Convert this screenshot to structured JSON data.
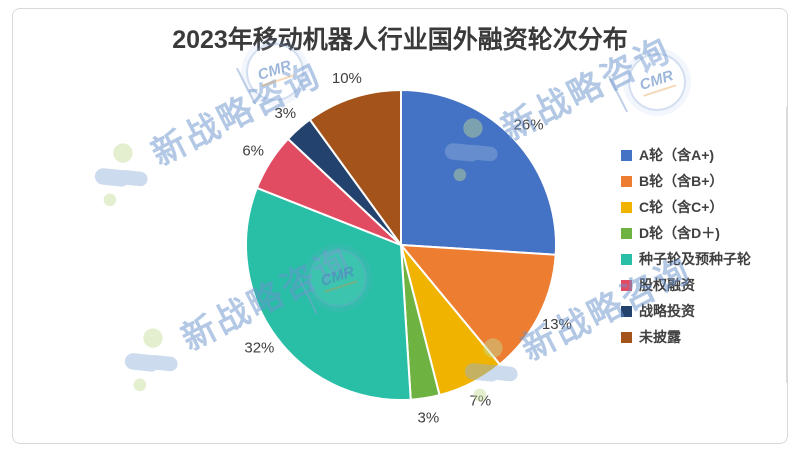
{
  "window": {
    "background": "#ffffff",
    "panel_border": "#d9d9d9"
  },
  "chart_data": {
    "type": "pie",
    "title": "2023年移动机器人行业国外融资轮次分布",
    "categories": [
      "A轮（含A+)",
      "B轮（含B+）",
      "C轮（含C+）",
      "D轮（含D＋)",
      "种子轮及预种子轮",
      "股权融资",
      "战略投资",
      "未披露"
    ],
    "values": [
      26,
      13,
      7,
      3,
      32,
      6,
      3,
      10
    ],
    "labels": [
      "26%",
      "13%",
      "7%",
      "3%",
      "32%",
      "6%",
      "3%",
      "10%"
    ],
    "colors": [
      "#4472C4",
      "#ED7D31",
      "#F0B400",
      "#6EB342",
      "#29BEA6",
      "#E24C62",
      "#24426E",
      "#A4541B"
    ],
    "legend_position": "right",
    "start_angle_deg": 0,
    "direction": "clockwise",
    "slice_border_color": "#ffffff",
    "label_color": "#404040",
    "title_color": "#3a3a3a"
  },
  "watermark": {
    "brand_text": "新战略咨询",
    "stamp_text": "CMR",
    "color": "#6a93cc"
  }
}
